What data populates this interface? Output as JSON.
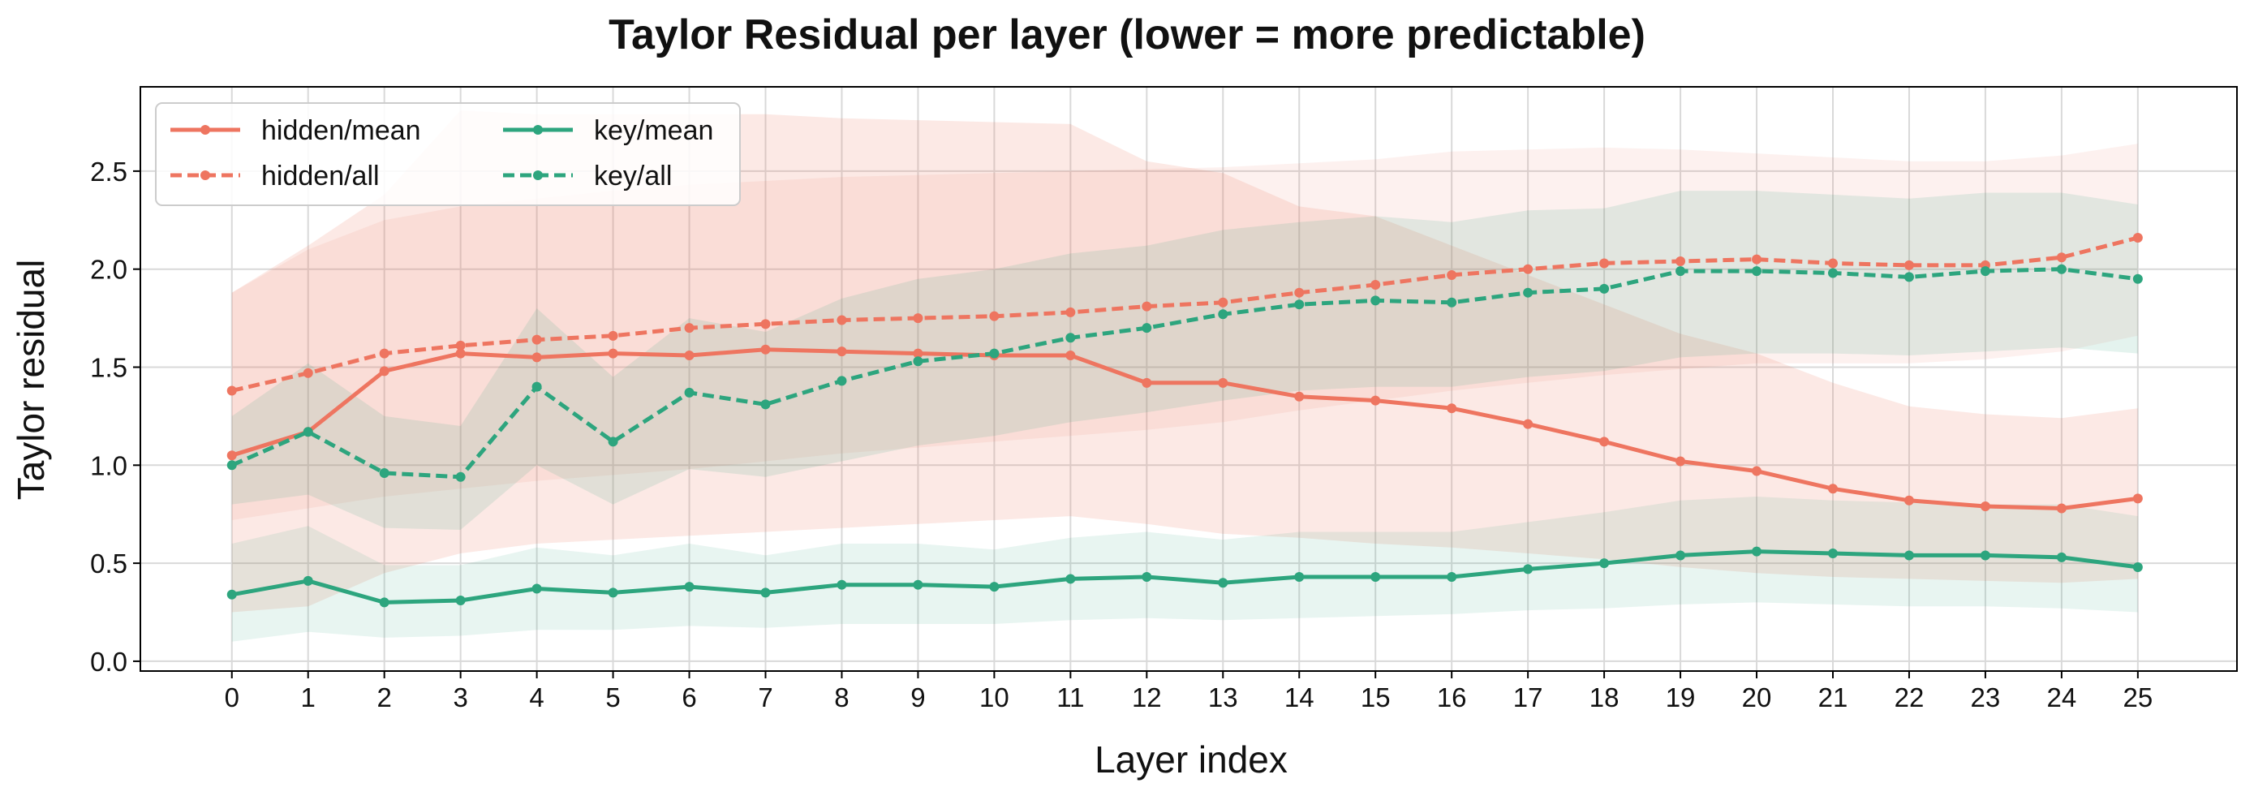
{
  "chart_data": {
    "type": "line",
    "title": "Taylor Residual per layer (lower = more predictable)",
    "xlabel": "Layer index",
    "ylabel": "Taylor residual",
    "x": [
      0,
      1,
      2,
      3,
      4,
      5,
      6,
      7,
      8,
      9,
      10,
      11,
      12,
      13,
      14,
      15,
      16,
      17,
      18,
      19,
      20,
      21,
      22,
      23,
      24,
      25
    ],
    "xlim": [
      -1.2,
      26.3
    ],
    "ylim": [
      -0.05,
      2.93
    ],
    "yticks": [
      0.0,
      0.5,
      1.0,
      1.5,
      2.0,
      2.5
    ],
    "ytick_labels": [
      "0.0",
      "0.5",
      "1.0",
      "1.5",
      "2.0",
      "2.5"
    ],
    "grid": true,
    "legend_position": "top-left",
    "series": [
      {
        "name": "hidden/mean",
        "color": "#ee7560",
        "style": "solid",
        "values": [
          1.05,
          1.17,
          1.48,
          1.57,
          1.55,
          1.57,
          1.56,
          1.59,
          1.58,
          1.57,
          1.56,
          1.56,
          1.42,
          1.42,
          1.35,
          1.33,
          1.29,
          1.21,
          1.12,
          1.02,
          0.97,
          0.88,
          0.82,
          0.79,
          0.78,
          0.83
        ],
        "band_lower": [
          0.25,
          0.28,
          0.45,
          0.55,
          0.6,
          0.62,
          0.64,
          0.66,
          0.68,
          0.7,
          0.72,
          0.74,
          0.7,
          0.65,
          0.63,
          0.6,
          0.58,
          0.55,
          0.52,
          0.48,
          0.45,
          0.43,
          0.42,
          0.41,
          0.4,
          0.42
        ],
        "band_upper": [
          1.88,
          2.12,
          2.38,
          2.81,
          2.79,
          2.79,
          2.79,
          2.79,
          2.77,
          2.76,
          2.75,
          2.74,
          2.55,
          2.49,
          2.32,
          2.27,
          2.12,
          1.97,
          1.82,
          1.67,
          1.57,
          1.42,
          1.3,
          1.26,
          1.24,
          1.29
        ]
      },
      {
        "name": "hidden/all",
        "color": "#ee7560",
        "style": "dashed",
        "values": [
          1.38,
          1.47,
          1.57,
          1.61,
          1.64,
          1.66,
          1.7,
          1.72,
          1.74,
          1.75,
          1.76,
          1.78,
          1.81,
          1.83,
          1.88,
          1.92,
          1.97,
          2.0,
          2.03,
          2.04,
          2.05,
          2.03,
          2.02,
          2.02,
          2.06,
          2.16
        ],
        "band_lower": [
          0.72,
          0.78,
          0.84,
          0.88,
          0.92,
          0.95,
          0.98,
          1.02,
          1.06,
          1.09,
          1.12,
          1.15,
          1.18,
          1.22,
          1.28,
          1.33,
          1.38,
          1.42,
          1.46,
          1.49,
          1.52,
          1.52,
          1.52,
          1.54,
          1.58,
          1.66
        ],
        "band_upper": [
          1.88,
          2.1,
          2.25,
          2.32,
          2.36,
          2.4,
          2.43,
          2.45,
          2.47,
          2.48,
          2.49,
          2.5,
          2.51,
          2.52,
          2.54,
          2.56,
          2.6,
          2.61,
          2.62,
          2.61,
          2.59,
          2.57,
          2.55,
          2.55,
          2.58,
          2.64
        ]
      },
      {
        "name": "key/mean",
        "color": "#2da57e",
        "style": "solid",
        "values": [
          0.34,
          0.41,
          0.3,
          0.31,
          0.37,
          0.35,
          0.38,
          0.35,
          0.39,
          0.39,
          0.38,
          0.42,
          0.43,
          0.4,
          0.43,
          0.43,
          0.43,
          0.47,
          0.5,
          0.54,
          0.56,
          0.55,
          0.54,
          0.54,
          0.53,
          0.48
        ],
        "band_lower": [
          0.1,
          0.15,
          0.12,
          0.13,
          0.16,
          0.16,
          0.18,
          0.17,
          0.19,
          0.19,
          0.19,
          0.21,
          0.22,
          0.21,
          0.22,
          0.23,
          0.24,
          0.26,
          0.27,
          0.29,
          0.3,
          0.29,
          0.28,
          0.28,
          0.27,
          0.25
        ],
        "band_upper": [
          0.6,
          0.69,
          0.49,
          0.49,
          0.58,
          0.54,
          0.6,
          0.54,
          0.6,
          0.6,
          0.57,
          0.63,
          0.66,
          0.62,
          0.66,
          0.66,
          0.66,
          0.71,
          0.76,
          0.82,
          0.84,
          0.82,
          0.81,
          0.8,
          0.8,
          0.74
        ]
      },
      {
        "name": "key/all",
        "color": "#2da57e",
        "style": "dashed",
        "values": [
          1.0,
          1.17,
          0.96,
          0.94,
          1.4,
          1.12,
          1.37,
          1.31,
          1.43,
          1.53,
          1.57,
          1.65,
          1.7,
          1.77,
          1.82,
          1.84,
          1.83,
          1.88,
          1.9,
          1.99,
          1.99,
          1.98,
          1.96,
          1.99,
          2.0,
          1.95
        ],
        "band_lower": [
          0.8,
          0.85,
          0.68,
          0.67,
          1.0,
          0.8,
          0.98,
          0.94,
          1.02,
          1.1,
          1.15,
          1.22,
          1.27,
          1.33,
          1.38,
          1.4,
          1.4,
          1.45,
          1.48,
          1.55,
          1.57,
          1.57,
          1.56,
          1.58,
          1.6,
          1.57
        ],
        "band_upper": [
          1.25,
          1.52,
          1.25,
          1.2,
          1.8,
          1.45,
          1.75,
          1.68,
          1.85,
          1.95,
          2.0,
          2.08,
          2.12,
          2.2,
          2.24,
          2.27,
          2.24,
          2.3,
          2.31,
          2.4,
          2.4,
          2.38,
          2.36,
          2.39,
          2.39,
          2.33
        ]
      }
    ]
  }
}
